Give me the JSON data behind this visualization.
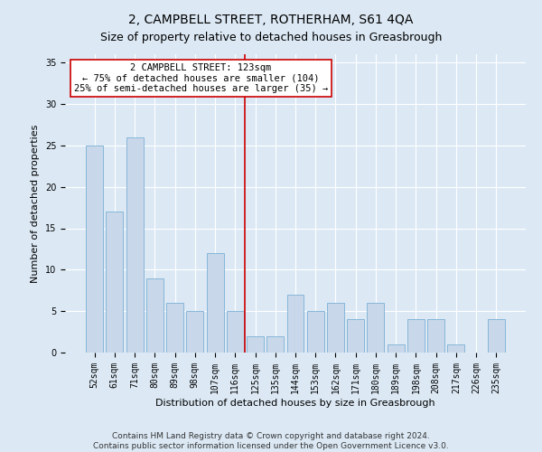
{
  "title": "2, CAMPBELL STREET, ROTHERHAM, S61 4QA",
  "subtitle": "Size of property relative to detached houses in Greasbrough",
  "xlabel": "Distribution of detached houses by size in Greasbrough",
  "ylabel": "Number of detached properties",
  "categories": [
    "52sqm",
    "61sqm",
    "71sqm",
    "80sqm",
    "89sqm",
    "98sqm",
    "107sqm",
    "116sqm",
    "125sqm",
    "135sqm",
    "144sqm",
    "153sqm",
    "162sqm",
    "171sqm",
    "180sqm",
    "189sqm",
    "198sqm",
    "208sqm",
    "217sqm",
    "226sqm",
    "235sqm"
  ],
  "values": [
    25,
    17,
    26,
    9,
    6,
    5,
    12,
    5,
    2,
    2,
    7,
    5,
    6,
    4,
    6,
    1,
    4,
    4,
    1,
    0,
    4
  ],
  "bar_color": "#c8d8ea",
  "bar_edgecolor": "#7aafd4",
  "vline_x_idx": 7,
  "vline_color": "#cc0000",
  "annotation_text": "2 CAMPBELL STREET: 123sqm\n← 75% of detached houses are smaller (104)\n25% of semi-detached houses are larger (35) →",
  "ylim": [
    0,
    36
  ],
  "yticks": [
    0,
    5,
    10,
    15,
    20,
    25,
    30,
    35
  ],
  "footer": "Contains HM Land Registry data © Crown copyright and database right 2024.\nContains public sector information licensed under the Open Government Licence v3.0.",
  "background_color": "#dce9f5",
  "title_fontsize": 10,
  "xlabel_fontsize": 8,
  "ylabel_fontsize": 8,
  "tick_fontsize": 7,
  "footer_fontsize": 6.5,
  "annotation_fontsize": 7.5
}
